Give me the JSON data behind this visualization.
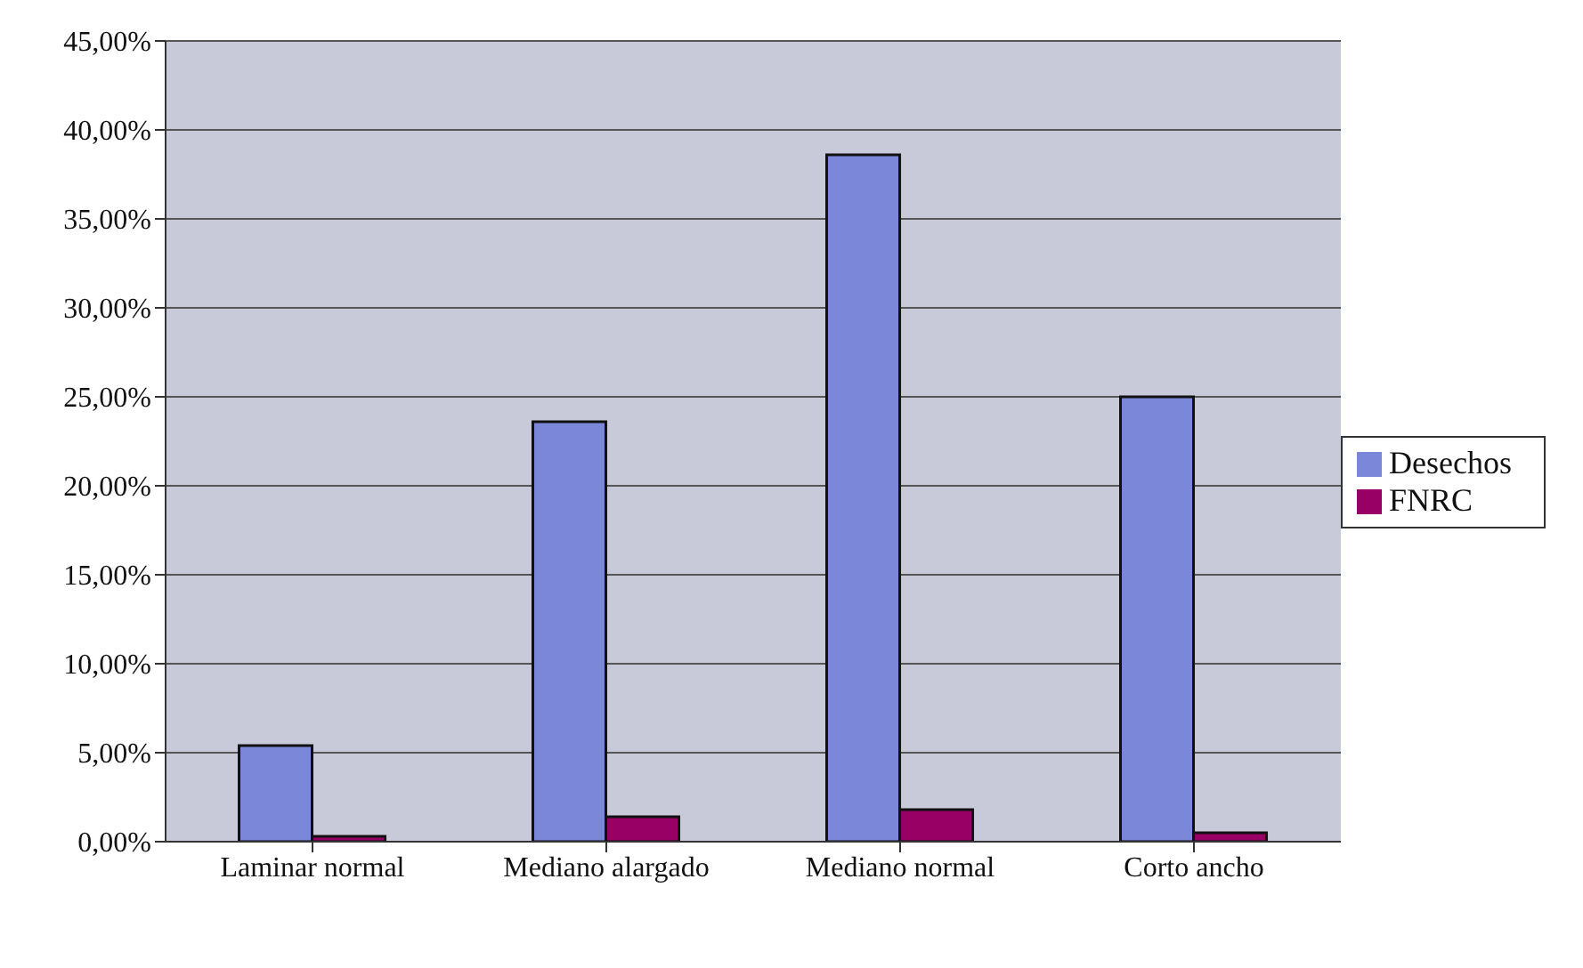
{
  "chart_data": {
    "type": "bar",
    "categories": [
      "Laminar normal",
      "Mediano alargado",
      "Mediano normal",
      "Corto ancho"
    ],
    "series": [
      {
        "name": "Desechos",
        "color": "#7b87d9",
        "values": [
          5.4,
          23.6,
          38.6,
          25.0
        ]
      },
      {
        "name": "FNRC",
        "color": "#990066",
        "values": [
          0.3,
          1.4,
          1.8,
          0.5
        ]
      }
    ],
    "ylim": [
      0,
      45
    ],
    "yticks": [
      {
        "value": 0,
        "label": "0,00%"
      },
      {
        "value": 5,
        "label": "5,00%"
      },
      {
        "value": 10,
        "label": "10,00%"
      },
      {
        "value": 15,
        "label": "15,00%"
      },
      {
        "value": 20,
        "label": "20,00%"
      },
      {
        "value": 25,
        "label": "25,00%"
      },
      {
        "value": 30,
        "label": "30,00%"
      },
      {
        "value": 35,
        "label": "35,00%"
      },
      {
        "value": 40,
        "label": "40,00%"
      },
      {
        "value": 45,
        "label": "45,00%"
      }
    ],
    "grid": "y",
    "legend": "right"
  }
}
